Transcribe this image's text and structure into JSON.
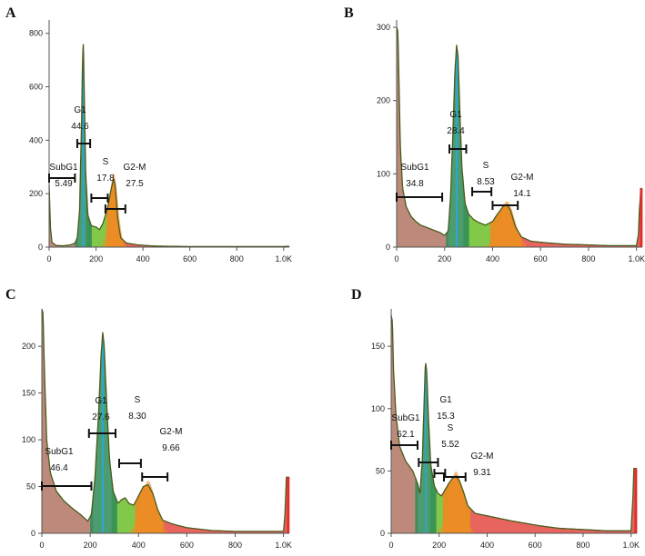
{
  "figure": {
    "colors": {
      "subg1": "#b57c6c",
      "g1": "#2e8b57",
      "g1_peak": "#29a8d8",
      "s": "#6cbf2a",
      "g2m": "#f08a24",
      "debris_right": "#e0302a",
      "outline": "#4a5b1c",
      "axis": "#555555",
      "gate": "#111111"
    }
  },
  "chart_data": [
    {
      "type": "area",
      "panel": "A",
      "x_ticks": [
        "0",
        "200",
        "400",
        "600",
        "800",
        "1.0K"
      ],
      "y_ticks": [
        "0",
        "200",
        "400",
        "600",
        "800"
      ],
      "xlim": [
        0,
        1024
      ],
      "ylim": [
        0,
        850
      ],
      "histogram": [
        [
          0,
          230
        ],
        [
          6,
          70
        ],
        [
          12,
          18
        ],
        [
          30,
          6
        ],
        [
          60,
          5
        ],
        [
          90,
          8
        ],
        [
          110,
          15
        ],
        [
          120,
          35
        ],
        [
          130,
          140
        ],
        [
          138,
          460
        ],
        [
          143,
          720
        ],
        [
          146,
          760
        ],
        [
          150,
          560
        ],
        [
          156,
          280
        ],
        [
          165,
          120
        ],
        [
          180,
          80
        ],
        [
          200,
          75
        ],
        [
          215,
          65
        ],
        [
          230,
          90
        ],
        [
          250,
          150
        ],
        [
          265,
          220
        ],
        [
          275,
          255
        ],
        [
          282,
          230
        ],
        [
          292,
          110
        ],
        [
          305,
          35
        ],
        [
          330,
          15
        ],
        [
          380,
          8
        ],
        [
          450,
          4
        ],
        [
          600,
          2
        ],
        [
          1000,
          2
        ],
        [
          1012,
          3
        ],
        [
          1020,
          3
        ]
      ],
      "phase_boundaries": {
        "g1_start": 110,
        "s_start": 165,
        "g2m_start": 245,
        "g2m_end": 320
      },
      "gates": [
        {
          "name": "SubG1",
          "value": "5.49",
          "range": [
            0,
            110
          ]
        },
        {
          "name": "G1",
          "value": "44.6",
          "range": [
            120,
            175
          ]
        },
        {
          "name": "S",
          "value": "17.8",
          "range": [
            180,
            250
          ]
        },
        {
          "name": "G2-M",
          "value": "27.5",
          "range": [
            240,
            325
          ]
        }
      ]
    },
    {
      "type": "area",
      "panel": "B",
      "x_ticks": [
        "0",
        "200",
        "400",
        "600",
        "800",
        "1.0K"
      ],
      "y_ticks": [
        "0",
        "100",
        "200",
        "300"
      ],
      "xlim": [
        0,
        1024
      ],
      "ylim": [
        0,
        310
      ],
      "histogram": [
        [
          0,
          300
        ],
        [
          5,
          295
        ],
        [
          9,
          240
        ],
        [
          15,
          140
        ],
        [
          25,
          80
        ],
        [
          40,
          55
        ],
        [
          60,
          42
        ],
        [
          80,
          35
        ],
        [
          100,
          30
        ],
        [
          140,
          25
        ],
        [
          180,
          20
        ],
        [
          200,
          16
        ],
        [
          215,
          22
        ],
        [
          225,
          70
        ],
        [
          235,
          160
        ],
        [
          243,
          240
        ],
        [
          250,
          276
        ],
        [
          256,
          260
        ],
        [
          264,
          180
        ],
        [
          272,
          110
        ],
        [
          285,
          60
        ],
        [
          300,
          45
        ],
        [
          320,
          38
        ],
        [
          340,
          34
        ],
        [
          370,
          30
        ],
        [
          400,
          35
        ],
        [
          420,
          45
        ],
        [
          445,
          56
        ],
        [
          460,
          58
        ],
        [
          475,
          50
        ],
        [
          495,
          28
        ],
        [
          520,
          14
        ],
        [
          560,
          8
        ],
        [
          620,
          6
        ],
        [
          700,
          4
        ],
        [
          800,
          3
        ],
        [
          880,
          2
        ],
        [
          1000,
          2
        ],
        [
          1008,
          18
        ],
        [
          1012,
          50
        ],
        [
          1018,
          80
        ],
        [
          1024,
          80
        ]
      ],
      "phase_boundaries": {
        "g1_start": 205,
        "s_start": 285,
        "g2m_start": 390,
        "g2m_end": 520
      },
      "gates": [
        {
          "name": "SubG1",
          "value": "34.8",
          "range": [
            0,
            190
          ]
        },
        {
          "name": "G1",
          "value": "28.4",
          "range": [
            220,
            290
          ]
        },
        {
          "name": "S",
          "value": "8.53",
          "range": [
            315,
            395
          ]
        },
        {
          "name": "G2-M",
          "value": "14.1",
          "range": [
            400,
            505
          ]
        }
      ]
    },
    {
      "type": "area",
      "panel": "C",
      "x_ticks": [
        "0",
        "200",
        "400",
        "600",
        "800",
        "1.0K"
      ],
      "y_ticks": [
        "0",
        "50",
        "100",
        "150",
        "200"
      ],
      "xlim": [
        0,
        1024
      ],
      "ylim": [
        0,
        240
      ],
      "histogram": [
        [
          0,
          240
        ],
        [
          5,
          235
        ],
        [
          10,
          180
        ],
        [
          20,
          100
        ],
        [
          35,
          65
        ],
        [
          60,
          45
        ],
        [
          90,
          35
        ],
        [
          120,
          28
        ],
        [
          160,
          20
        ],
        [
          190,
          13
        ],
        [
          205,
          20
        ],
        [
          220,
          60
        ],
        [
          235,
          130
        ],
        [
          245,
          190
        ],
        [
          252,
          215
        ],
        [
          258,
          200
        ],
        [
          268,
          140
        ],
        [
          280,
          80
        ],
        [
          295,
          45
        ],
        [
          315,
          32
        ],
        [
          330,
          36
        ],
        [
          345,
          38
        ],
        [
          360,
          32
        ],
        [
          380,
          30
        ],
        [
          400,
          40
        ],
        [
          420,
          50
        ],
        [
          440,
          52
        ],
        [
          460,
          42
        ],
        [
          480,
          25
        ],
        [
          500,
          14
        ],
        [
          540,
          10
        ],
        [
          600,
          6
        ],
        [
          700,
          3
        ],
        [
          800,
          2
        ],
        [
          1000,
          2
        ],
        [
          1006,
          20
        ],
        [
          1012,
          60
        ],
        [
          1018,
          60
        ],
        [
          1024,
          60
        ]
      ],
      "phase_boundaries": {
        "g1_start": 200,
        "s_start": 295,
        "g2m_start": 385,
        "g2m_end": 505
      },
      "gates": [
        {
          "name": "SubG1",
          "value": "46.4",
          "range": [
            0,
            205
          ]
        },
        {
          "name": "G1",
          "value": "27.6",
          "range": [
            195,
            305
          ]
        },
        {
          "name": "S",
          "value": "8.30",
          "range": [
            320,
            410
          ]
        },
        {
          "name": "G2-M",
          "value": "9.66",
          "range": [
            415,
            520
          ]
        }
      ]
    },
    {
      "type": "area",
      "panel": "D",
      "x_ticks": [
        "0",
        "200",
        "400",
        "600",
        "800",
        "1.0K"
      ],
      "y_ticks": [
        "0",
        "50",
        "100",
        "150"
      ],
      "xlim": [
        0,
        1024
      ],
      "ylim": [
        0,
        180
      ],
      "histogram": [
        [
          0,
          175
        ],
        [
          5,
          170
        ],
        [
          10,
          130
        ],
        [
          20,
          95
        ],
        [
          35,
          70
        ],
        [
          60,
          58
        ],
        [
          90,
          50
        ],
        [
          110,
          40
        ],
        [
          120,
          32
        ],
        [
          130,
          60
        ],
        [
          138,
          110
        ],
        [
          143,
          138
        ],
        [
          148,
          130
        ],
        [
          156,
          90
        ],
        [
          165,
          55
        ],
        [
          180,
          38
        ],
        [
          195,
          32
        ],
        [
          210,
          30
        ],
        [
          225,
          35
        ],
        [
          240,
          40
        ],
        [
          255,
          44
        ],
        [
          270,
          46
        ],
        [
          285,
          42
        ],
        [
          300,
          34
        ],
        [
          320,
          22
        ],
        [
          350,
          16
        ],
        [
          400,
          14
        ],
        [
          450,
          12
        ],
        [
          500,
          10
        ],
        [
          560,
          8
        ],
        [
          620,
          6
        ],
        [
          700,
          4
        ],
        [
          800,
          3
        ],
        [
          900,
          2
        ],
        [
          1000,
          2
        ],
        [
          1008,
          30
        ],
        [
          1012,
          52
        ],
        [
          1018,
          52
        ],
        [
          1024,
          52
        ]
      ],
      "phase_boundaries": {
        "g1_start": 100,
        "s_start": 170,
        "g2m_start": 215,
        "g2m_end": 330
      },
      "gates": [
        {
          "name": "SubG1",
          "value": "62.1",
          "range": [
            0,
            110
          ]
        },
        {
          "name": "G1",
          "value": "15.3",
          "range": [
            115,
            195
          ]
        },
        {
          "name": "S",
          "value": "5.52",
          "range": [
            180,
            225
          ]
        },
        {
          "name": "G2-M",
          "value": "9.31",
          "range": [
            220,
            310
          ]
        }
      ]
    }
  ]
}
